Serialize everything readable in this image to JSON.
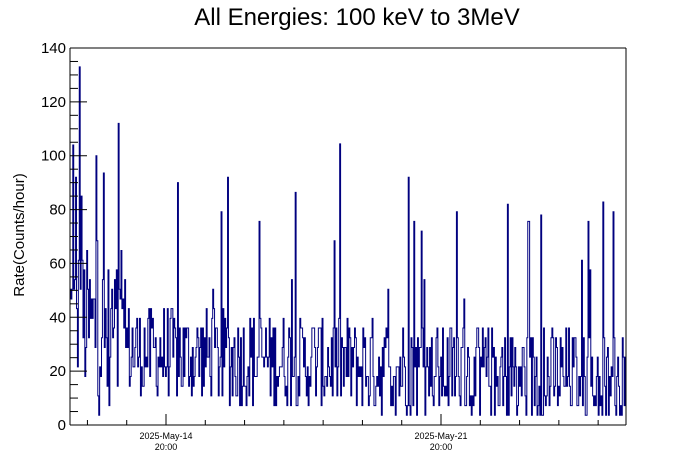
{
  "chart_data": {
    "type": "line",
    "title": "All Energies:  100 keV to 3MeV",
    "ylabel": "Rate(Counts/hour)",
    "ylim": [
      0,
      140
    ],
    "y_ticks": [
      "0",
      "20",
      "40",
      "60",
      "80",
      "100",
      "120",
      "140"
    ],
    "x_ticks": [
      {
        "date": "2025-May-14",
        "time": "20:00"
      },
      {
        "date": "2025-May-21",
        "time": "20:00"
      }
    ],
    "grid": false,
    "line_color": "#00007f",
    "series": [
      {
        "note_points": "hourly count rate histogram; values are counts/hour in steps of ~3.6",
        "values": []
      }
    ]
  }
}
